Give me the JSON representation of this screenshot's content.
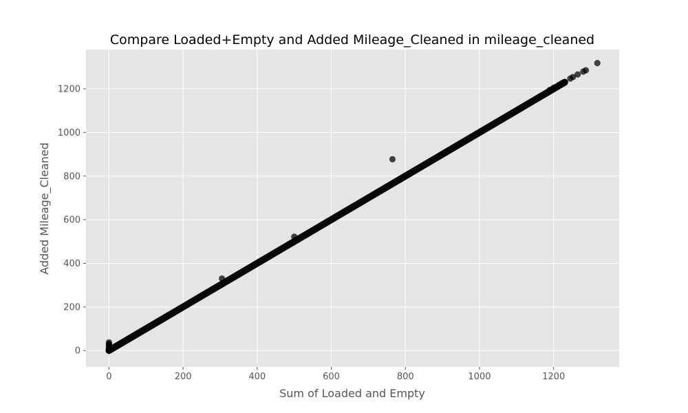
{
  "chart_data": {
    "type": "scatter",
    "title": "Compare Loaded+Empty and Added Mileage_Cleaned in mileage_cleaned",
    "xlabel": "Sum of Loaded and Empty",
    "ylabel": "Added Mileage_Cleaned",
    "xlim": [
      -62,
      1377
    ],
    "ylim": [
      -75,
      1380
    ],
    "xticks": [
      0,
      200,
      400,
      600,
      800,
      1000,
      1200
    ],
    "yticks": [
      0,
      200,
      400,
      600,
      800,
      1000,
      1200
    ],
    "grid": true,
    "style": "ggplot",
    "colors": {
      "points": "#000000",
      "background": "#e5e5e5",
      "grid": "#ffffff"
    },
    "trend": {
      "description": "dense points along y = x",
      "x_start": 0,
      "x_end": 1230
    },
    "points": [
      {
        "x": 0,
        "y": 0
      },
      {
        "x": 0,
        "y": 5
      },
      {
        "x": 0,
        "y": 10
      },
      {
        "x": 0,
        "y": 15
      },
      {
        "x": 0,
        "y": 20
      },
      {
        "x": 0,
        "y": 25
      },
      {
        "x": 0,
        "y": 30
      },
      {
        "x": 0,
        "y": 37
      },
      {
        "x": 3,
        "y": 2
      },
      {
        "x": 5,
        "y": 5
      },
      {
        "x": 305,
        "y": 330
      },
      {
        "x": 500,
        "y": 522
      },
      {
        "x": 765,
        "y": 877
      },
      {
        "x": 1190,
        "y": 1195
      },
      {
        "x": 1200,
        "y": 1205
      },
      {
        "x": 1215,
        "y": 1218
      },
      {
        "x": 1222,
        "y": 1225
      },
      {
        "x": 1228,
        "y": 1230
      },
      {
        "x": 1245,
        "y": 1247
      },
      {
        "x": 1252,
        "y": 1254
      },
      {
        "x": 1265,
        "y": 1266
      },
      {
        "x": 1280,
        "y": 1279
      },
      {
        "x": 1287,
        "y": 1285
      },
      {
        "x": 1318,
        "y": 1318
      }
    ]
  }
}
